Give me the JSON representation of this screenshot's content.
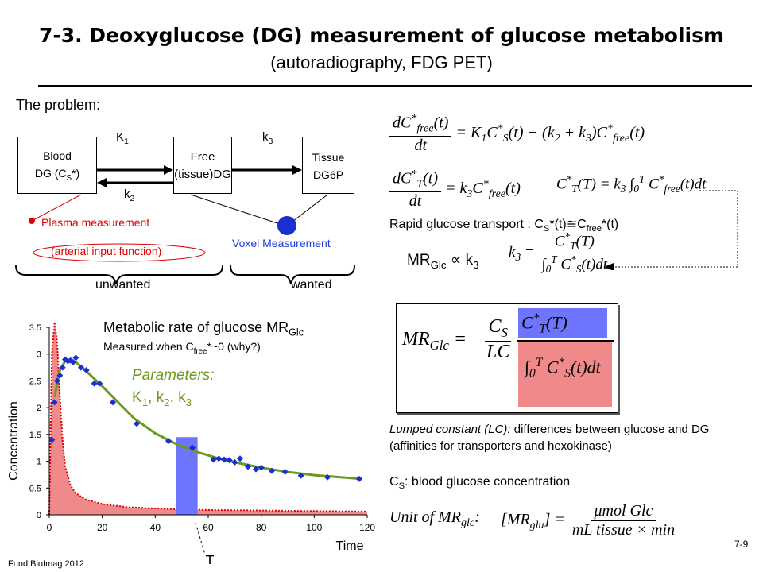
{
  "header": {
    "title": "7-3. Deoxyglucose (DG) measurement of glucose metabolism",
    "subtitle": "(autoradiography, FDG PET)"
  },
  "problem_label": "The problem:",
  "compartments": {
    "blood_line1": "Blood",
    "blood_line2": "DG (C",
    "blood_sub": "S",
    "blood_tail": "*)",
    "free_line1": "Free",
    "free_line2": "(tissue)DG",
    "tissue_line1": "Tissue",
    "tissue_line2": "DG6P",
    "k1": "K",
    "k1_sub": "1",
    "k2": "k",
    "k2_sub": "2",
    "k3": "k",
    "k3_sub": "3"
  },
  "annotations": {
    "plasma": "Plasma measurement",
    "arterial": "(arterial input function)",
    "voxel": "Voxel Measurement",
    "unwanted": "unwanted",
    "wanted": "wanted",
    "rapid": "Rapid glucose transport : C",
    "rapid_s": "S",
    "rapid_mid": "*(t)≅C",
    "rapid_free": "free",
    "rapid_end": "*(t)",
    "mr_prop": "MR",
    "mr_prop_sub": "Glc",
    "mr_prop_tail": " ∝ k",
    "mr_prop_k": "3"
  },
  "graph_text": {
    "heading": "Metabolic rate of glucose MR",
    "heading_sub": "Glc",
    "measured": "Measured when C",
    "measured_sub": "free",
    "measured_tail": "*~0 (why?)",
    "params": "Parameters:",
    "params2": "K",
    "params2_sub1": "1",
    "params2_mid": ", k",
    "params2_sub2": "2",
    "params2_mid2": ", k",
    "params2_sub3": "3",
    "T_marker": "T"
  },
  "notes": {
    "lc_label": "Lumped constant (LC):",
    "lc_text": " differences between glucose and DG",
    "lc_text2": "(affinities for transporters and hexokinase)",
    "cs_label": "C",
    "cs_sub": "S",
    "cs_text": ": blood glucose concentration",
    "unit_label": "Unit of MR",
    "unit_sub": "glc",
    "unit_colon": ":"
  },
  "footer": {
    "left": "Fund BioImag 2012",
    "page": "7-9"
  },
  "colors": {
    "red": "#e00000",
    "blue_marker": "#1a2fd0",
    "green_fit": "#6b9a1f",
    "blue_band": "#6f74ff",
    "pink_fill": "#f08a8a"
  },
  "chart_data": {
    "type": "scatter",
    "xlabel": "Time",
    "ylabel": "Concentration",
    "xlim": [
      0,
      120
    ],
    "ylim": [
      0,
      3.5
    ],
    "xticks": [
      "0",
      "20",
      "40",
      "60",
      "80",
      "100",
      "120"
    ],
    "yticks": [
      "0",
      "0.5",
      "1",
      "1.5",
      "2",
      "2.5",
      "3",
      "3.5"
    ],
    "points": [
      [
        1,
        1.4
      ],
      [
        2,
        2.1
      ],
      [
        3,
        2.5
      ],
      [
        4,
        2.6
      ],
      [
        5,
        2.75
      ],
      [
        6,
        2.9
      ],
      [
        7,
        2.87
      ],
      [
        8,
        2.88
      ],
      [
        9,
        2.85
      ],
      [
        10,
        2.93
      ],
      [
        12,
        2.75
      ],
      [
        14,
        2.7
      ],
      [
        17,
        2.45
      ],
      [
        19,
        2.45
      ],
      [
        24,
        2.1
      ],
      [
        33,
        1.7
      ],
      [
        45,
        1.38
      ],
      [
        54,
        1.25
      ],
      [
        62,
        1.03
      ],
      [
        64,
        1.05
      ],
      [
        66,
        1.03
      ],
      [
        68,
        1.02
      ],
      [
        70,
        0.98
      ],
      [
        72,
        1.05
      ],
      [
        75,
        0.9
      ],
      [
        78,
        0.85
      ],
      [
        80,
        0.88
      ],
      [
        84,
        0.82
      ],
      [
        89,
        0.8
      ],
      [
        95,
        0.73
      ],
      [
        105,
        0.7
      ],
      [
        117,
        0.67
      ]
    ],
    "fit": [
      [
        2,
        2.2
      ],
      [
        4,
        2.7
      ],
      [
        6,
        2.87
      ],
      [
        8,
        2.88
      ],
      [
        10,
        2.85
      ],
      [
        14,
        2.68
      ],
      [
        20,
        2.4
      ],
      [
        26,
        2.1
      ],
      [
        32,
        1.8
      ],
      [
        40,
        1.52
      ],
      [
        48,
        1.32
      ],
      [
        56,
        1.17
      ],
      [
        64,
        1.05
      ],
      [
        72,
        0.96
      ],
      [
        80,
        0.88
      ],
      [
        90,
        0.8
      ],
      [
        100,
        0.74
      ],
      [
        110,
        0.7
      ],
      [
        118,
        0.67
      ]
    ],
    "plasma": [
      [
        0,
        0
      ],
      [
        0.5,
        1.5
      ],
      [
        1,
        3.0
      ],
      [
        2,
        3.6
      ],
      [
        3,
        3.2
      ],
      [
        4,
        2.2
      ],
      [
        5,
        1.4
      ],
      [
        6,
        0.9
      ],
      [
        8,
        0.55
      ],
      [
        10,
        0.4
      ],
      [
        14,
        0.28
      ],
      [
        20,
        0.2
      ],
      [
        30,
        0.14
      ],
      [
        45,
        0.11
      ],
      [
        60,
        0.09
      ],
      [
        80,
        0.08
      ],
      [
        100,
        0.07
      ],
      [
        120,
        0.06
      ]
    ],
    "band_x": [
      48,
      56
    ],
    "band_ymax": 1.45
  }
}
